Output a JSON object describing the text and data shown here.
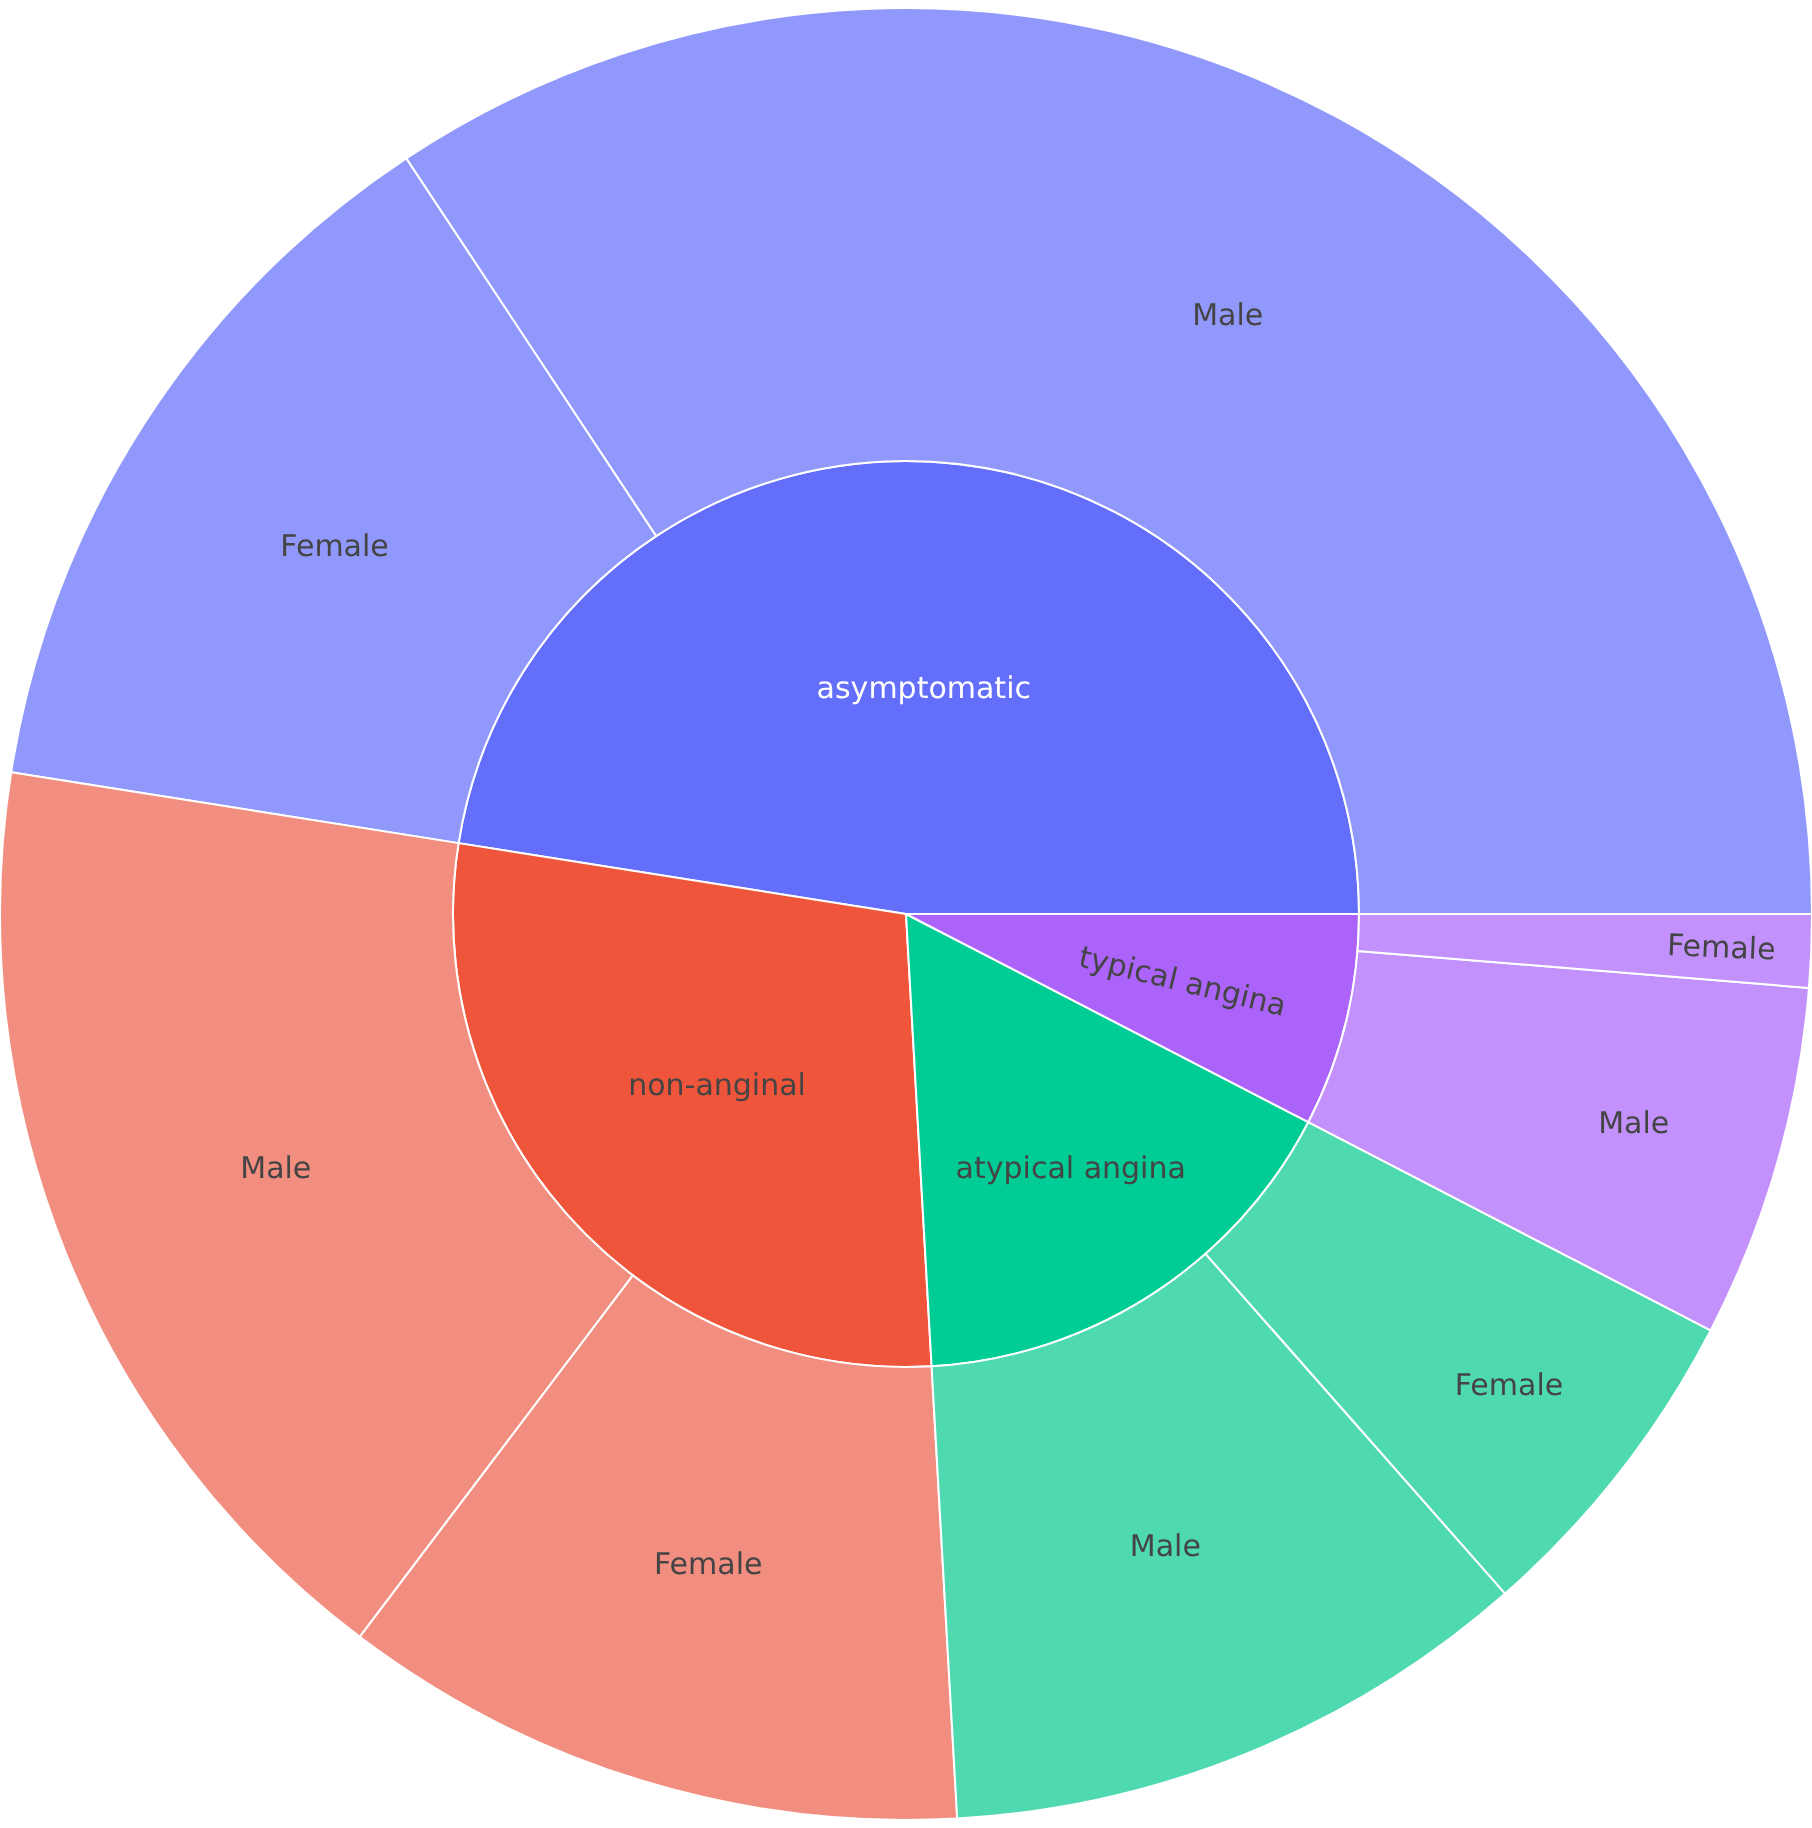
{
  "chart_data": [
    {
      "type": "pie",
      "categories": [
        "asymptomatic",
        "non-anginal",
        "atypical angina",
        "typical angina"
      ],
      "values": [
        47.5,
        28.4,
        16.5,
        7.6
      ],
      "colors": [
        "#636efa",
        "#ef553b",
        "#00cc96",
        "#ab63fa"
      ]
    },
    {
      "type": "donut",
      "categories": [
        "Male",
        "Female",
        "Male",
        "Female",
        "Male",
        "Female",
        "Male",
        "Female"
      ],
      "values": [
        34.3,
        13.2,
        17.2,
        11.2,
        10.6,
        5.9,
        6.3,
        1.3
      ],
      "colors": [
        "#9198fb",
        "#9198fb",
        "#f28e80",
        "#f28e80",
        "#4fd9b0",
        "#4fd9b0",
        "#c291fb",
        "#c291fb"
      ]
    }
  ]
}
